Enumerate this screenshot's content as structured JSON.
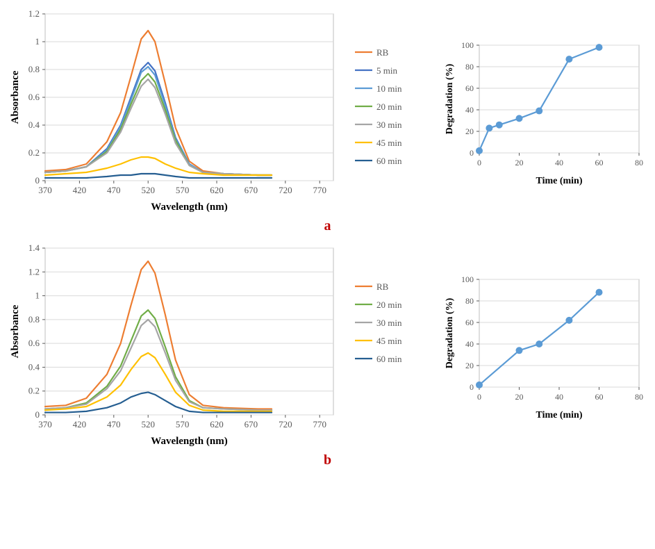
{
  "panelA": {
    "label": "a",
    "absorbance": {
      "type": "line",
      "xlabel": "Wavelength (nm)",
      "ylabel": "Absorbance",
      "label_fontsize": 15,
      "xlim": [
        370,
        790
      ],
      "ylim": [
        0,
        1.2
      ],
      "xticks": [
        370,
        420,
        470,
        520,
        570,
        620,
        670,
        720,
        770
      ],
      "yticks": [
        0,
        0.2,
        0.4,
        0.6,
        0.8,
        1,
        1.2
      ],
      "grid_color": "#d9d9d9",
      "background_color": "#ffffff",
      "border_color": "#bfbfbf",
      "line_width": 2.2,
      "series": [
        {
          "name": "RB",
          "color": "#ed7d31",
          "x": [
            370,
            400,
            430,
            460,
            480,
            495,
            510,
            520,
            530,
            545,
            560,
            580,
            600,
            630,
            680,
            700
          ],
          "y": [
            0.07,
            0.08,
            0.12,
            0.28,
            0.49,
            0.75,
            1.02,
            1.08,
            1.0,
            0.7,
            0.38,
            0.14,
            0.07,
            0.05,
            0.04,
            0.04
          ]
        },
        {
          "name": "5 min",
          "color": "#4472c4",
          "x": [
            370,
            400,
            430,
            460,
            480,
            495,
            510,
            520,
            530,
            545,
            560,
            580,
            600,
            630,
            680,
            700
          ],
          "y": [
            0.06,
            0.07,
            0.1,
            0.23,
            0.4,
            0.6,
            0.8,
            0.85,
            0.79,
            0.56,
            0.31,
            0.12,
            0.06,
            0.05,
            0.04,
            0.04
          ]
        },
        {
          "name": "10 min",
          "color": "#5b9bd5",
          "x": [
            370,
            400,
            430,
            460,
            480,
            495,
            510,
            520,
            530,
            545,
            560,
            580,
            600,
            630,
            680,
            700
          ],
          "y": [
            0.06,
            0.07,
            0.1,
            0.22,
            0.39,
            0.58,
            0.78,
            0.82,
            0.76,
            0.54,
            0.3,
            0.12,
            0.06,
            0.05,
            0.04,
            0.04
          ]
        },
        {
          "name": "20 min",
          "color": "#70ad47",
          "x": [
            370,
            400,
            430,
            460,
            480,
            495,
            510,
            520,
            530,
            545,
            560,
            580,
            600,
            630,
            680,
            700
          ],
          "y": [
            0.06,
            0.07,
            0.1,
            0.21,
            0.37,
            0.55,
            0.72,
            0.77,
            0.71,
            0.51,
            0.29,
            0.11,
            0.06,
            0.05,
            0.04,
            0.04
          ]
        },
        {
          "name": "30 min",
          "color": "#a5a5a5",
          "x": [
            370,
            400,
            430,
            460,
            480,
            495,
            510,
            520,
            530,
            545,
            560,
            580,
            600,
            630,
            680,
            700
          ],
          "y": [
            0.06,
            0.07,
            0.1,
            0.2,
            0.35,
            0.52,
            0.68,
            0.73,
            0.67,
            0.48,
            0.27,
            0.11,
            0.06,
            0.05,
            0.04,
            0.04
          ]
        },
        {
          "name": "45 min",
          "color": "#ffc000",
          "x": [
            370,
            400,
            430,
            460,
            480,
            495,
            510,
            520,
            530,
            545,
            560,
            580,
            600,
            630,
            680,
            700
          ],
          "y": [
            0.04,
            0.05,
            0.06,
            0.09,
            0.12,
            0.15,
            0.17,
            0.17,
            0.16,
            0.12,
            0.09,
            0.06,
            0.05,
            0.04,
            0.04,
            0.04
          ]
        },
        {
          "name": "60 min",
          "color": "#255e91",
          "x": [
            370,
            400,
            430,
            460,
            480,
            495,
            510,
            520,
            530,
            545,
            560,
            580,
            600,
            630,
            680,
            700
          ],
          "y": [
            0.02,
            0.02,
            0.02,
            0.03,
            0.04,
            0.04,
            0.05,
            0.05,
            0.05,
            0.04,
            0.03,
            0.02,
            0.02,
            0.02,
            0.02,
            0.02
          ]
        }
      ],
      "legend_fontsize": 13
    },
    "degradation": {
      "type": "line-marker",
      "xlabel": "Time (min)",
      "ylabel": "Degradation (%)",
      "label_fontsize": 14,
      "xlim": [
        0,
        80
      ],
      "ylim": [
        0,
        100
      ],
      "xticks": [
        0,
        20,
        40,
        60,
        80
      ],
      "yticks": [
        0,
        20,
        40,
        60,
        80,
        100
      ],
      "grid_color": "#d9d9d9",
      "background_color": "#ffffff",
      "border_color": "#bfbfbf",
      "line_color": "#5b9bd5",
      "marker_color": "#5b9bd5",
      "marker_size": 5,
      "line_width": 2.2,
      "x": [
        0,
        5,
        10,
        20,
        30,
        45,
        60
      ],
      "y": [
        2,
        23,
        26,
        32,
        39,
        87,
        98
      ]
    }
  },
  "panelB": {
    "label": "b",
    "absorbance": {
      "type": "line",
      "xlabel": "Wavelength (nm)",
      "ylabel": "Absorbance",
      "label_fontsize": 15,
      "xlim": [
        370,
        790
      ],
      "ylim": [
        0,
        1.4
      ],
      "xticks": [
        370,
        420,
        470,
        520,
        570,
        620,
        670,
        720,
        770
      ],
      "yticks": [
        0,
        0.2,
        0.4,
        0.6,
        0.8,
        1,
        1.2,
        1.4
      ],
      "grid_color": "#d9d9d9",
      "background_color": "#ffffff",
      "border_color": "#bfbfbf",
      "line_width": 2.2,
      "series": [
        {
          "name": "RB",
          "color": "#ed7d31",
          "x": [
            370,
            400,
            430,
            460,
            480,
            495,
            510,
            520,
            530,
            545,
            560,
            580,
            600,
            630,
            680,
            700
          ],
          "y": [
            0.07,
            0.08,
            0.14,
            0.34,
            0.6,
            0.92,
            1.22,
            1.29,
            1.19,
            0.84,
            0.46,
            0.17,
            0.08,
            0.06,
            0.05,
            0.05
          ]
        },
        {
          "name": "20 min",
          "color": "#70ad47",
          "x": [
            370,
            400,
            430,
            460,
            480,
            495,
            510,
            520,
            530,
            545,
            560,
            580,
            600,
            630,
            680,
            700
          ],
          "y": [
            0.05,
            0.06,
            0.1,
            0.24,
            0.41,
            0.62,
            0.83,
            0.88,
            0.81,
            0.57,
            0.32,
            0.12,
            0.06,
            0.05,
            0.04,
            0.04
          ]
        },
        {
          "name": "30 min",
          "color": "#a5a5a5",
          "x": [
            370,
            400,
            430,
            460,
            480,
            495,
            510,
            520,
            530,
            545,
            560,
            580,
            600,
            630,
            680,
            700
          ],
          "y": [
            0.05,
            0.06,
            0.09,
            0.22,
            0.37,
            0.56,
            0.75,
            0.8,
            0.74,
            0.52,
            0.29,
            0.11,
            0.06,
            0.05,
            0.04,
            0.04
          ]
        },
        {
          "name": "45 min",
          "color": "#ffc000",
          "x": [
            370,
            400,
            430,
            460,
            480,
            495,
            510,
            520,
            530,
            545,
            560,
            580,
            600,
            630,
            680,
            700
          ],
          "y": [
            0.04,
            0.05,
            0.07,
            0.15,
            0.25,
            0.38,
            0.49,
            0.52,
            0.48,
            0.34,
            0.19,
            0.08,
            0.04,
            0.03,
            0.03,
            0.03
          ]
        },
        {
          "name": "60 min",
          "color": "#255e91",
          "x": [
            370,
            400,
            430,
            460,
            480,
            495,
            510,
            520,
            530,
            545,
            560,
            580,
            600,
            630,
            680,
            700
          ],
          "y": [
            0.02,
            0.02,
            0.03,
            0.06,
            0.1,
            0.15,
            0.18,
            0.19,
            0.17,
            0.12,
            0.07,
            0.03,
            0.02,
            0.02,
            0.02,
            0.02
          ]
        }
      ],
      "legend_fontsize": 13
    },
    "degradation": {
      "type": "line-marker",
      "xlabel": "Time (min)",
      "ylabel": "Degradation (%)",
      "label_fontsize": 14,
      "xlim": [
        0,
        80
      ],
      "ylim": [
        0,
        100
      ],
      "xticks": [
        0,
        20,
        40,
        60,
        80
      ],
      "yticks": [
        0,
        20,
        40,
        60,
        80,
        100
      ],
      "grid_color": "#d9d9d9",
      "background_color": "#ffffff",
      "border_color": "#bfbfbf",
      "line_color": "#5b9bd5",
      "marker_color": "#5b9bd5",
      "marker_size": 5,
      "line_width": 2.2,
      "x": [
        0,
        20,
        30,
        45,
        60
      ],
      "y": [
        2,
        34,
        40,
        62,
        88
      ]
    }
  }
}
